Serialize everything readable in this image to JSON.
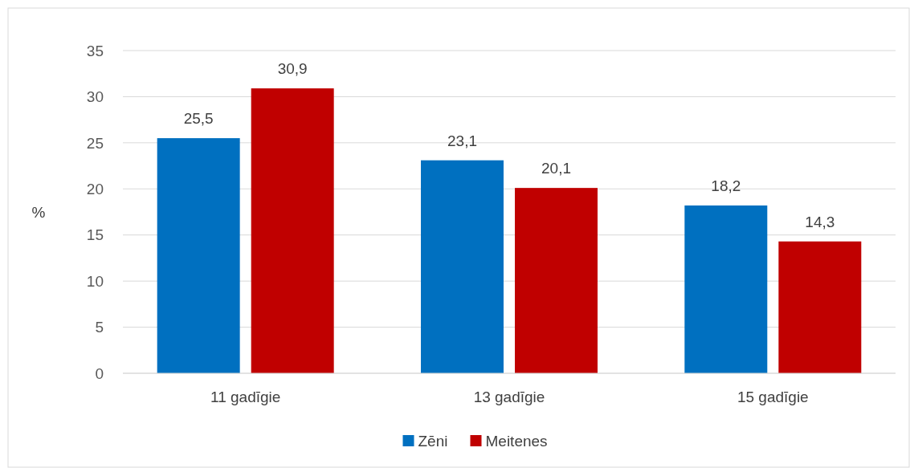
{
  "chart_data": {
    "type": "bar",
    "ylabel": "%",
    "categories": [
      "11 gadīgie",
      "13 gadīgie",
      "15 gadīgie"
    ],
    "series": [
      {
        "name": "Zēni",
        "color": "#0070c0",
        "values": [
          25.5,
          23.1,
          18.2
        ],
        "value_labels": [
          "25,5",
          "23,1",
          "18,2"
        ]
      },
      {
        "name": "Meitenes",
        "color": "#c00000",
        "values": [
          30.9,
          20.1,
          14.3
        ],
        "value_labels": [
          "30,9",
          "20,1",
          "14,3"
        ]
      }
    ],
    "ylim": [
      0,
      35
    ],
    "yticks": [
      0,
      5,
      10,
      15,
      20,
      25,
      30,
      35
    ],
    "grid": "y",
    "legend": "bottom"
  }
}
